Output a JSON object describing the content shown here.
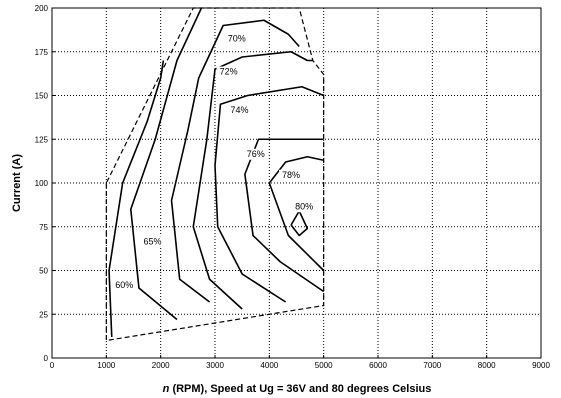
{
  "chart_data": {
    "type": "contour",
    "title": "",
    "xlabel_italic": "n",
    "xlabel_rest": " (RPM), Speed at Ug = 36V and 80 degrees Celsius",
    "ylabel": "Current (A)",
    "xlim": [
      0,
      9000
    ],
    "ylim": [
      0,
      200
    ],
    "xticks": [
      0,
      1000,
      2000,
      3000,
      4000,
      5000,
      6000,
      7000,
      8000,
      9000
    ],
    "yticks": [
      0,
      25,
      50,
      75,
      100,
      125,
      150,
      175,
      200
    ],
    "grid": true,
    "boundary": [
      [
        1000,
        100
      ],
      [
        1000,
        10
      ],
      [
        5000,
        30
      ],
      [
        5000,
        162
      ],
      [
        4800,
        170
      ],
      [
        4550,
        200
      ],
      [
        3000,
        200
      ],
      [
        2600,
        200
      ],
      [
        1000,
        100
      ]
    ],
    "contours": [
      {
        "label": "60%",
        "label_at": [
          1330,
          40
        ],
        "points": [
          [
            1100,
            12
          ],
          [
            1050,
            50
          ],
          [
            1300,
            100
          ],
          [
            1750,
            135
          ],
          [
            2000,
            160
          ],
          [
            2050,
            170
          ]
        ]
      },
      {
        "label": "65%",
        "label_at": [
          1850,
          65
        ],
        "points": [
          [
            2300,
            22
          ],
          [
            1600,
            40
          ],
          [
            1450,
            85
          ],
          [
            1900,
            125
          ],
          [
            2300,
            170
          ],
          [
            2600,
            190
          ],
          [
            2750,
            200
          ]
        ]
      },
      {
        "label": "70%",
        "label_at": [
          3400,
          181
        ],
        "points": [
          [
            2900,
            32
          ],
          [
            2350,
            45
          ],
          [
            2200,
            90
          ],
          [
            2500,
            130
          ],
          [
            2700,
            160
          ],
          [
            3150,
            190
          ],
          [
            3900,
            193
          ],
          [
            4350,
            185
          ],
          [
            4550,
            178
          ]
        ]
      },
      {
        "label": "72%",
        "label_at": [
          3250,
          162
        ],
        "points": [
          [
            3500,
            28
          ],
          [
            2900,
            45
          ],
          [
            2600,
            75
          ],
          [
            2850,
            125
          ],
          [
            3000,
            165
          ],
          [
            3500,
            172
          ],
          [
            4400,
            175
          ],
          [
            4700,
            170
          ],
          [
            4800,
            170
          ]
        ]
      },
      {
        "label": "74%",
        "label_at": [
          3450,
          140
        ],
        "points": [
          [
            4300,
            32
          ],
          [
            3500,
            48
          ],
          [
            3050,
            75
          ],
          [
            3000,
            110
          ],
          [
            3100,
            145
          ],
          [
            3600,
            150
          ],
          [
            4600,
            155
          ],
          [
            5000,
            150
          ]
        ]
      },
      {
        "label": "76%",
        "label_at": [
          3750,
          115
        ],
        "points": [
          [
            5000,
            38
          ],
          [
            4200,
            55
          ],
          [
            3700,
            70
          ],
          [
            3550,
            105
          ],
          [
            3800,
            125
          ],
          [
            5000,
            125
          ]
        ]
      },
      {
        "label": "78%",
        "label_at": [
          4400,
          103
        ],
        "points": [
          [
            5000,
            50
          ],
          [
            4350,
            70
          ],
          [
            4000,
            100
          ],
          [
            4300,
            112
          ],
          [
            4700,
            115
          ],
          [
            5000,
            113
          ]
        ]
      },
      {
        "label": "80%",
        "label_at": [
          4640,
          85
        ],
        "points": [
          [
            4400,
            76
          ],
          [
            4550,
            84
          ],
          [
            4700,
            74
          ],
          [
            4550,
            70
          ],
          [
            4400,
            76
          ]
        ]
      }
    ]
  }
}
